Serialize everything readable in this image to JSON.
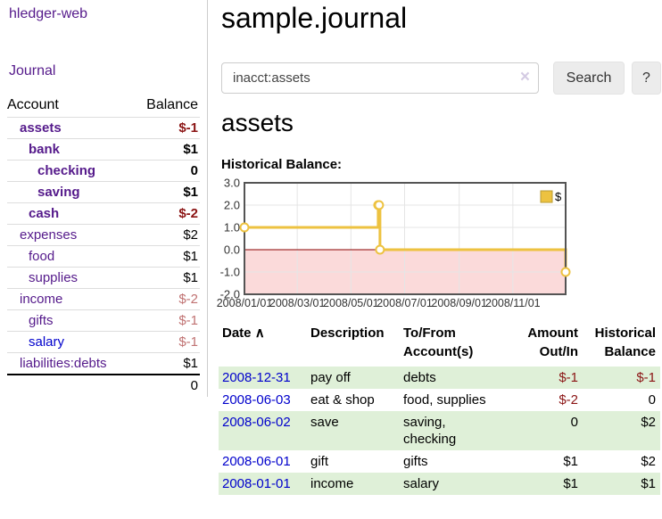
{
  "sidebar": {
    "app_title": "hledger-web",
    "journal_link": "Journal",
    "accounts_table": {
      "col_account": "Account",
      "col_balance": "Balance",
      "rows": [
        {
          "name": "assets",
          "depth": 1,
          "bold": true,
          "balance": "$-1",
          "balance_tone": "negative",
          "link": "purple"
        },
        {
          "name": "bank",
          "depth": 2,
          "bold": true,
          "balance": "$1",
          "balance_tone": "normal",
          "link": "purple"
        },
        {
          "name": "checking",
          "depth": 3,
          "bold": true,
          "balance": "0",
          "balance_tone": "normal",
          "link": "purple"
        },
        {
          "name": "saving",
          "depth": 3,
          "bold": true,
          "balance": "$1",
          "balance_tone": "normal",
          "link": "purple"
        },
        {
          "name": "cash",
          "depth": 2,
          "bold": true,
          "balance": "$-2",
          "balance_tone": "negative",
          "link": "purple"
        },
        {
          "name": "expenses",
          "depth": 1,
          "bold": false,
          "balance": "$2",
          "balance_tone": "normal",
          "link": "purple"
        },
        {
          "name": "food",
          "depth": 2,
          "bold": false,
          "balance": "$1",
          "balance_tone": "normal",
          "link": "purple"
        },
        {
          "name": "supplies",
          "depth": 2,
          "bold": false,
          "balance": "$1",
          "balance_tone": "normal",
          "link": "purple"
        },
        {
          "name": "income",
          "depth": 1,
          "bold": false,
          "balance": "$-2",
          "balance_tone": "negative-soft",
          "link": "purple"
        },
        {
          "name": "gifts",
          "depth": 2,
          "bold": false,
          "balance": "$-1",
          "balance_tone": "negative-soft",
          "link": "purple"
        },
        {
          "name": "salary",
          "depth": 2,
          "bold": false,
          "balance": "$-1",
          "balance_tone": "negative-soft",
          "link": "blue"
        },
        {
          "name": "liabilities:debts",
          "depth": 1,
          "bold": false,
          "balance": "$1",
          "balance_tone": "normal",
          "link": "purple"
        }
      ],
      "total": "0"
    }
  },
  "main": {
    "title": "sample.journal",
    "search": {
      "value": "inacct:assets",
      "clear_icon": "×",
      "button_label": "Search",
      "help_label": "?"
    },
    "account_heading": "assets",
    "chart_title": "Historical Balance:",
    "register": {
      "columns": {
        "date": "Date",
        "sort_icon": "∧",
        "description": "Description",
        "accounts": "To/From\nAccount(s)",
        "amount": "Amount\nOut/In",
        "balance": "Historical\nBalance"
      },
      "rows": [
        {
          "date": "2008-12-31",
          "description": "pay off",
          "accounts": "debts",
          "amount": "$-1",
          "amount_negative": true,
          "balance": "$-1",
          "balance_negative": true,
          "shaded": true
        },
        {
          "date": "2008-06-03",
          "description": "eat & shop",
          "accounts": "food, supplies",
          "amount": "$-2",
          "amount_negative": true,
          "balance": "0",
          "balance_negative": false,
          "shaded": false
        },
        {
          "date": "2008-06-02",
          "description": "save",
          "accounts": "saving,\nchecking",
          "amount": "0",
          "amount_negative": false,
          "balance": "$2",
          "balance_negative": false,
          "shaded": true
        },
        {
          "date": "2008-06-01",
          "description": "gift",
          "accounts": "gifts",
          "amount": "$1",
          "amount_negative": false,
          "balance": "$2",
          "balance_negative": false,
          "shaded": false
        },
        {
          "date": "2008-01-01",
          "description": "income",
          "accounts": "salary",
          "amount": "$1",
          "amount_negative": false,
          "balance": "$1",
          "balance_negative": false,
          "shaded": true
        }
      ]
    }
  },
  "colors": {
    "link_purple": "#551a8b",
    "link_blue": "#0000cc",
    "negative_strong": "#8b1414",
    "negative_soft": "#c07272",
    "row_green": "#dff0d8",
    "chart_line": "#edc240",
    "chart_negative_fill": "#fbdada",
    "chart_zero_line": "#8b0000",
    "chart_grid": "#e5e5e5",
    "chart_border": "#545454"
  },
  "chart_data": {
    "type": "line",
    "title": "Historical Balance",
    "step": true,
    "series": [
      {
        "name": "$",
        "color": "#edc240",
        "points": [
          [
            "2008-01-01",
            1
          ],
          [
            "2008-06-01",
            2
          ],
          [
            "2008-06-02",
            2
          ],
          [
            "2008-06-03",
            0
          ],
          [
            "2008-12-31",
            -1
          ]
        ]
      }
    ],
    "x_ticks": [
      "2008/01/01",
      "2008/03/01",
      "2008/05/01",
      "2008/07/01",
      "2008/09/01",
      "2008/11/01"
    ],
    "y_ticks": [
      3.0,
      2.0,
      1.0,
      0.0,
      -1.0,
      -2.0
    ],
    "xlim": [
      "2008-01-01",
      "2008-12-31"
    ],
    "ylim": [
      -2,
      3
    ],
    "legend": {
      "position": "top-right"
    },
    "grid": true
  }
}
